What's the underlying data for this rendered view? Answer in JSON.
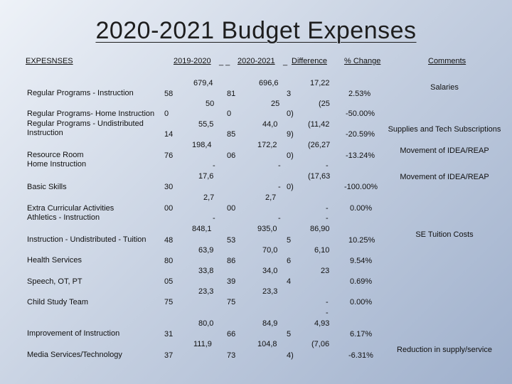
{
  "title": "2020-2021 Budget Expenses",
  "headers": {
    "expenses": "EXPESNSES",
    "y2019": "2019-2020",
    "y2020": "2020-2021",
    "difference": "Difference",
    "pct": "% Change",
    "comments": "Comments"
  },
  "rows": [
    {
      "label": "Regular Programs - Instruction",
      "a1": "679,4",
      "a2": "58",
      "b1": "696,6",
      "b2": "81",
      "d1": "17,22",
      "d2": "3",
      "pct": "2.53%",
      "comment": "Salaries"
    },
    {
      "label": "Regular Programs- Home Instruction",
      "a1": "50",
      "a2": "0",
      "b1": "25",
      "b2": "0",
      "d1": "(25",
      "d2": "0)",
      "pct": "-50.00%",
      "comment": ""
    },
    {
      "label": "Regular Programs - Undistributed Instruction",
      "a1": "55,5",
      "a2": "14",
      "b1": "44,0",
      "b2": "85",
      "d1": "(11,42",
      "d2": "9)",
      "pct": "-20.59%",
      "comment": "Supplies and Tech Subscriptions"
    },
    {
      "label": "Resource Room Home Instruction",
      "a1": "198,4",
      "a2": "76",
      "b1": "172,2",
      "b2": "06",
      "d1": "(26,27",
      "d2": "0)",
      "pct": "-13.24%",
      "comment": "Movement of IDEA/REAP"
    },
    {
      "label": "Basic Skills",
      "a1": "17,6",
      "a2": "30",
      "b1": "-",
      "b2": "",
      "d1": "(17,63",
      "d2": "0)",
      "pct": "-100.00%",
      "comment": "Movement of IDEA/REAP"
    },
    {
      "label": "Extra Curricular Activities Athletics - Instruction",
      "a1": "2,7",
      "a2": "00",
      "b1": "2,7",
      "b2": "00",
      "d1": "-",
      "d2": "",
      "pct": "0.00%",
      "comment": ""
    },
    {
      "label": "Instruction - Undistributed - Tuition",
      "a1": "848,1",
      "a2": "48",
      "b1": "935,0",
      "b2": "53",
      "d1": "86,90",
      "d2": "5",
      "pct": "10.25%",
      "comment": "SE Tuition Costs"
    },
    {
      "label": "Health Services",
      "a1": "63,9",
      "a2": "80",
      "b1": "70,0",
      "b2": "86",
      "d1": "6,10",
      "d2": "6",
      "pct": "9.54%",
      "comment": ""
    },
    {
      "label": "Speech, OT, PT",
      "a1": "33,8",
      "a2": "05",
      "b1": "34,0",
      "b2": "39",
      "d1": "23",
      "d2": "4",
      "pct": "0.69%",
      "comment": ""
    },
    {
      "label": "Child Study Team",
      "a1": "23,3",
      "a2": "75",
      "b1": "23,3",
      "b2": "75",
      "d1": "-",
      "d2": "",
      "pct": "0.00%",
      "comment": ""
    },
    {
      "label": "Improvement of Instruction",
      "a1": "80,0",
      "a2": "31",
      "b1": "84,9",
      "b2": "66",
      "d1": "4,93",
      "d2": "5",
      "pct": "6.17%",
      "comment": ""
    },
    {
      "label": "Media Services/Technology",
      "a1": "111,9",
      "a2": "37",
      "b1": "104,8",
      "b2": "73",
      "d1": "(7,06",
      "d2": "4)",
      "pct": "-6.31%",
      "comment": "Reduction in supply/service"
    }
  ],
  "dashes": {
    "r1": "-",
    "r2": "-",
    "r3": "-",
    "r4": "-",
    "r5": "-",
    "r6": "-",
    "r7": "-"
  }
}
